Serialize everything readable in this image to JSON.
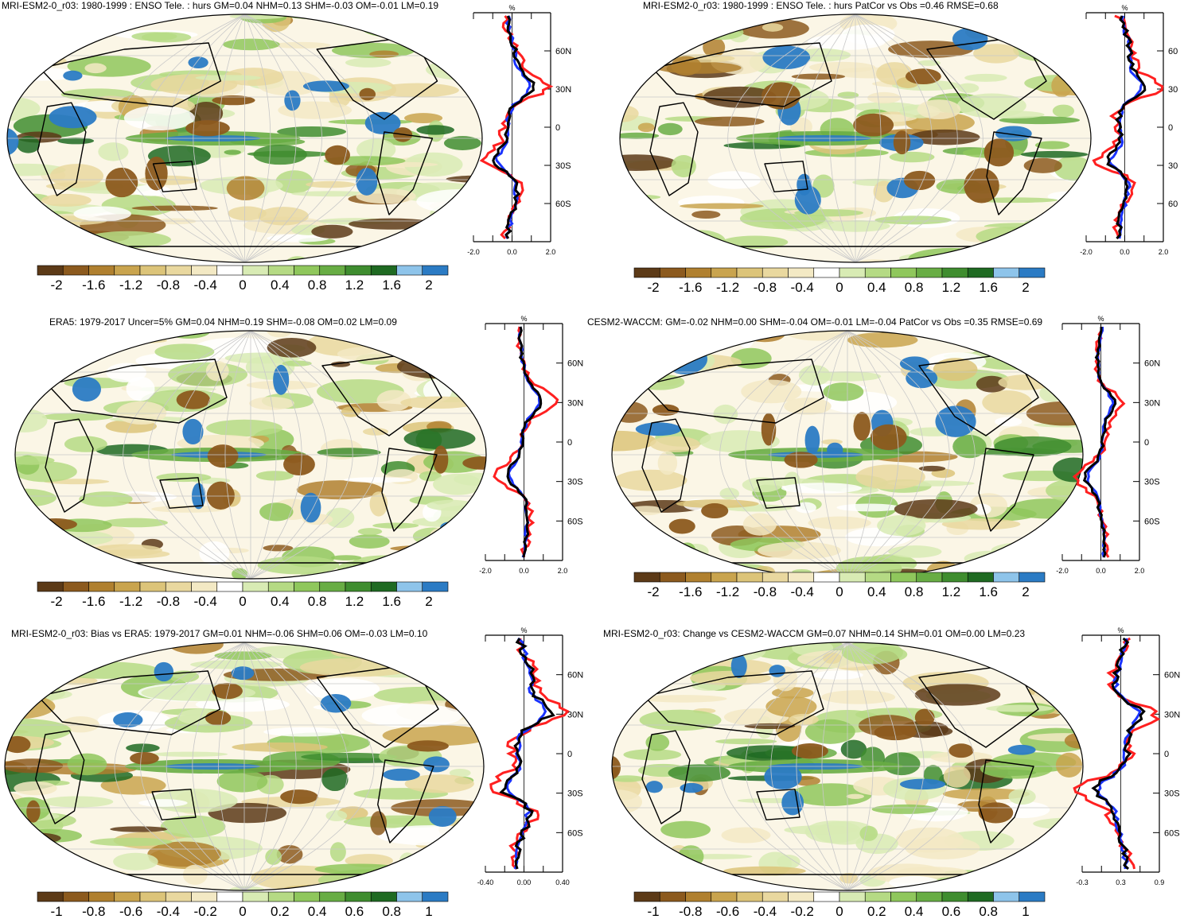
{
  "panels": [
    {
      "id": "p1",
      "title": "MRI-ESM2-0_r03: 1980-1999 : ENSO Tele. : hurs GM=0.04 NHM=0.13 SHM=-0.03 OM=-0.01 LM=0.19",
      "profile_unit": "%",
      "lat_labels": [
        "60N",
        "30N",
        "0",
        "30S",
        "60S"
      ],
      "x_ticks": [
        "-2.0",
        "0.0",
        "2.0"
      ],
      "colorbar_labels": [
        "-2",
        "-1.6",
        "-1.2",
        "-0.8",
        "-0.4",
        "0",
        "0.4",
        "0.8",
        "1.2",
        "1.6",
        "2"
      ]
    },
    {
      "id": "p2",
      "title": "MRI-ESM2-0_r03: 1980-1999 : ENSO Tele. : hurs PatCor vs Obs =0.46 RMSE=0.68",
      "profile_unit": "%",
      "lat_labels": [
        "60",
        "30",
        "0",
        "30",
        "60"
      ],
      "x_ticks": [
        "-2.0",
        "0.0",
        "2.0"
      ],
      "colorbar_labels": [
        "-2",
        "-1.6",
        "-1.2",
        "-0.8",
        "-0.4",
        "0",
        "0.4",
        "0.8",
        "1.2",
        "1.6",
        "2"
      ]
    },
    {
      "id": "p3",
      "title": "ERA5: 1979-2017 Uncer=5% GM=0.04 NHM=0.19 SHM=-0.08 OM=0.02 LM=0.09",
      "profile_unit": "%",
      "lat_labels": [
        "60N",
        "30N",
        "0",
        "30S",
        "60S"
      ],
      "x_ticks": [
        "-2.0",
        "0.0",
        "2.0"
      ],
      "colorbar_labels": [
        "-2",
        "-1.6",
        "-1.2",
        "-0.8",
        "-0.4",
        "0",
        "0.4",
        "0.8",
        "1.2",
        "1.6",
        "2"
      ]
    },
    {
      "id": "p4",
      "title": "CESM2-WACCM: GM=-0.02 NHM=0.00 SHM=-0.04 OM=-0.01 LM=-0.04 PatCor vs Obs =0.35 RMSE=0.69",
      "profile_unit": "%",
      "lat_labels": [
        "60N",
        "30N",
        "0",
        "30S",
        "60S"
      ],
      "x_ticks": [
        "-2.0",
        "0.0",
        "2.0"
      ],
      "colorbar_labels": [
        "-2",
        "-1.6",
        "-1.2",
        "-0.8",
        "-0.4",
        "0",
        "0.4",
        "0.8",
        "1.2",
        "1.6",
        "2"
      ]
    },
    {
      "id": "p5",
      "title": "MRI-ESM2-0_r03: Bias vs ERA5: 1979-2017 GM=0.01 NHM=-0.06 SHM=0.06 OM=-0.03 LM=0.10",
      "profile_unit": "%",
      "lat_labels": [
        "60N",
        "30N",
        "0",
        "30S",
        "60S"
      ],
      "x_ticks": [
        "-0.40",
        "0.00",
        "0.40"
      ],
      "colorbar_labels": [
        "-1",
        "-0.8",
        "-0.6",
        "-0.4",
        "-0.2",
        "0",
        "0.2",
        "0.4",
        "0.6",
        "0.8",
        "1"
      ]
    },
    {
      "id": "p6",
      "title": "MRI-ESM2-0_r03: Change vs CESM2-WACCM GM=0.07 NHM=0.14 SHM=0.01 OM=0.00 LM=0.23",
      "profile_unit": "%",
      "lat_labels": [
        "60N",
        "30N",
        "0",
        "30S",
        "60S"
      ],
      "x_ticks": [
        "-0.3",
        "0.3",
        "0.9"
      ],
      "colorbar_labels": [
        "-1",
        "-0.8",
        "-0.6",
        "-0.4",
        "-0.2",
        "0",
        "0.2",
        "0.4",
        "0.6",
        "0.8",
        "1"
      ]
    }
  ],
  "colors": {
    "palette": [
      "#5c3a17",
      "#8c5a1e",
      "#b0802f",
      "#c9a44e",
      "#dcc479",
      "#e9d89f",
      "#f3e9c4",
      "#ffffff",
      "#d8ebb4",
      "#b5da84",
      "#8fc75c",
      "#68ad44",
      "#3f8d2f",
      "#1f6a22",
      "#8ec4ea",
      "#2b7bc4"
    ],
    "ocean_neutral": "#ffffff",
    "land_line": "#000000",
    "profile_zonal_mean": "#000000",
    "profile_land": "#ff2020",
    "profile_ocean": "#1a33ff"
  }
}
